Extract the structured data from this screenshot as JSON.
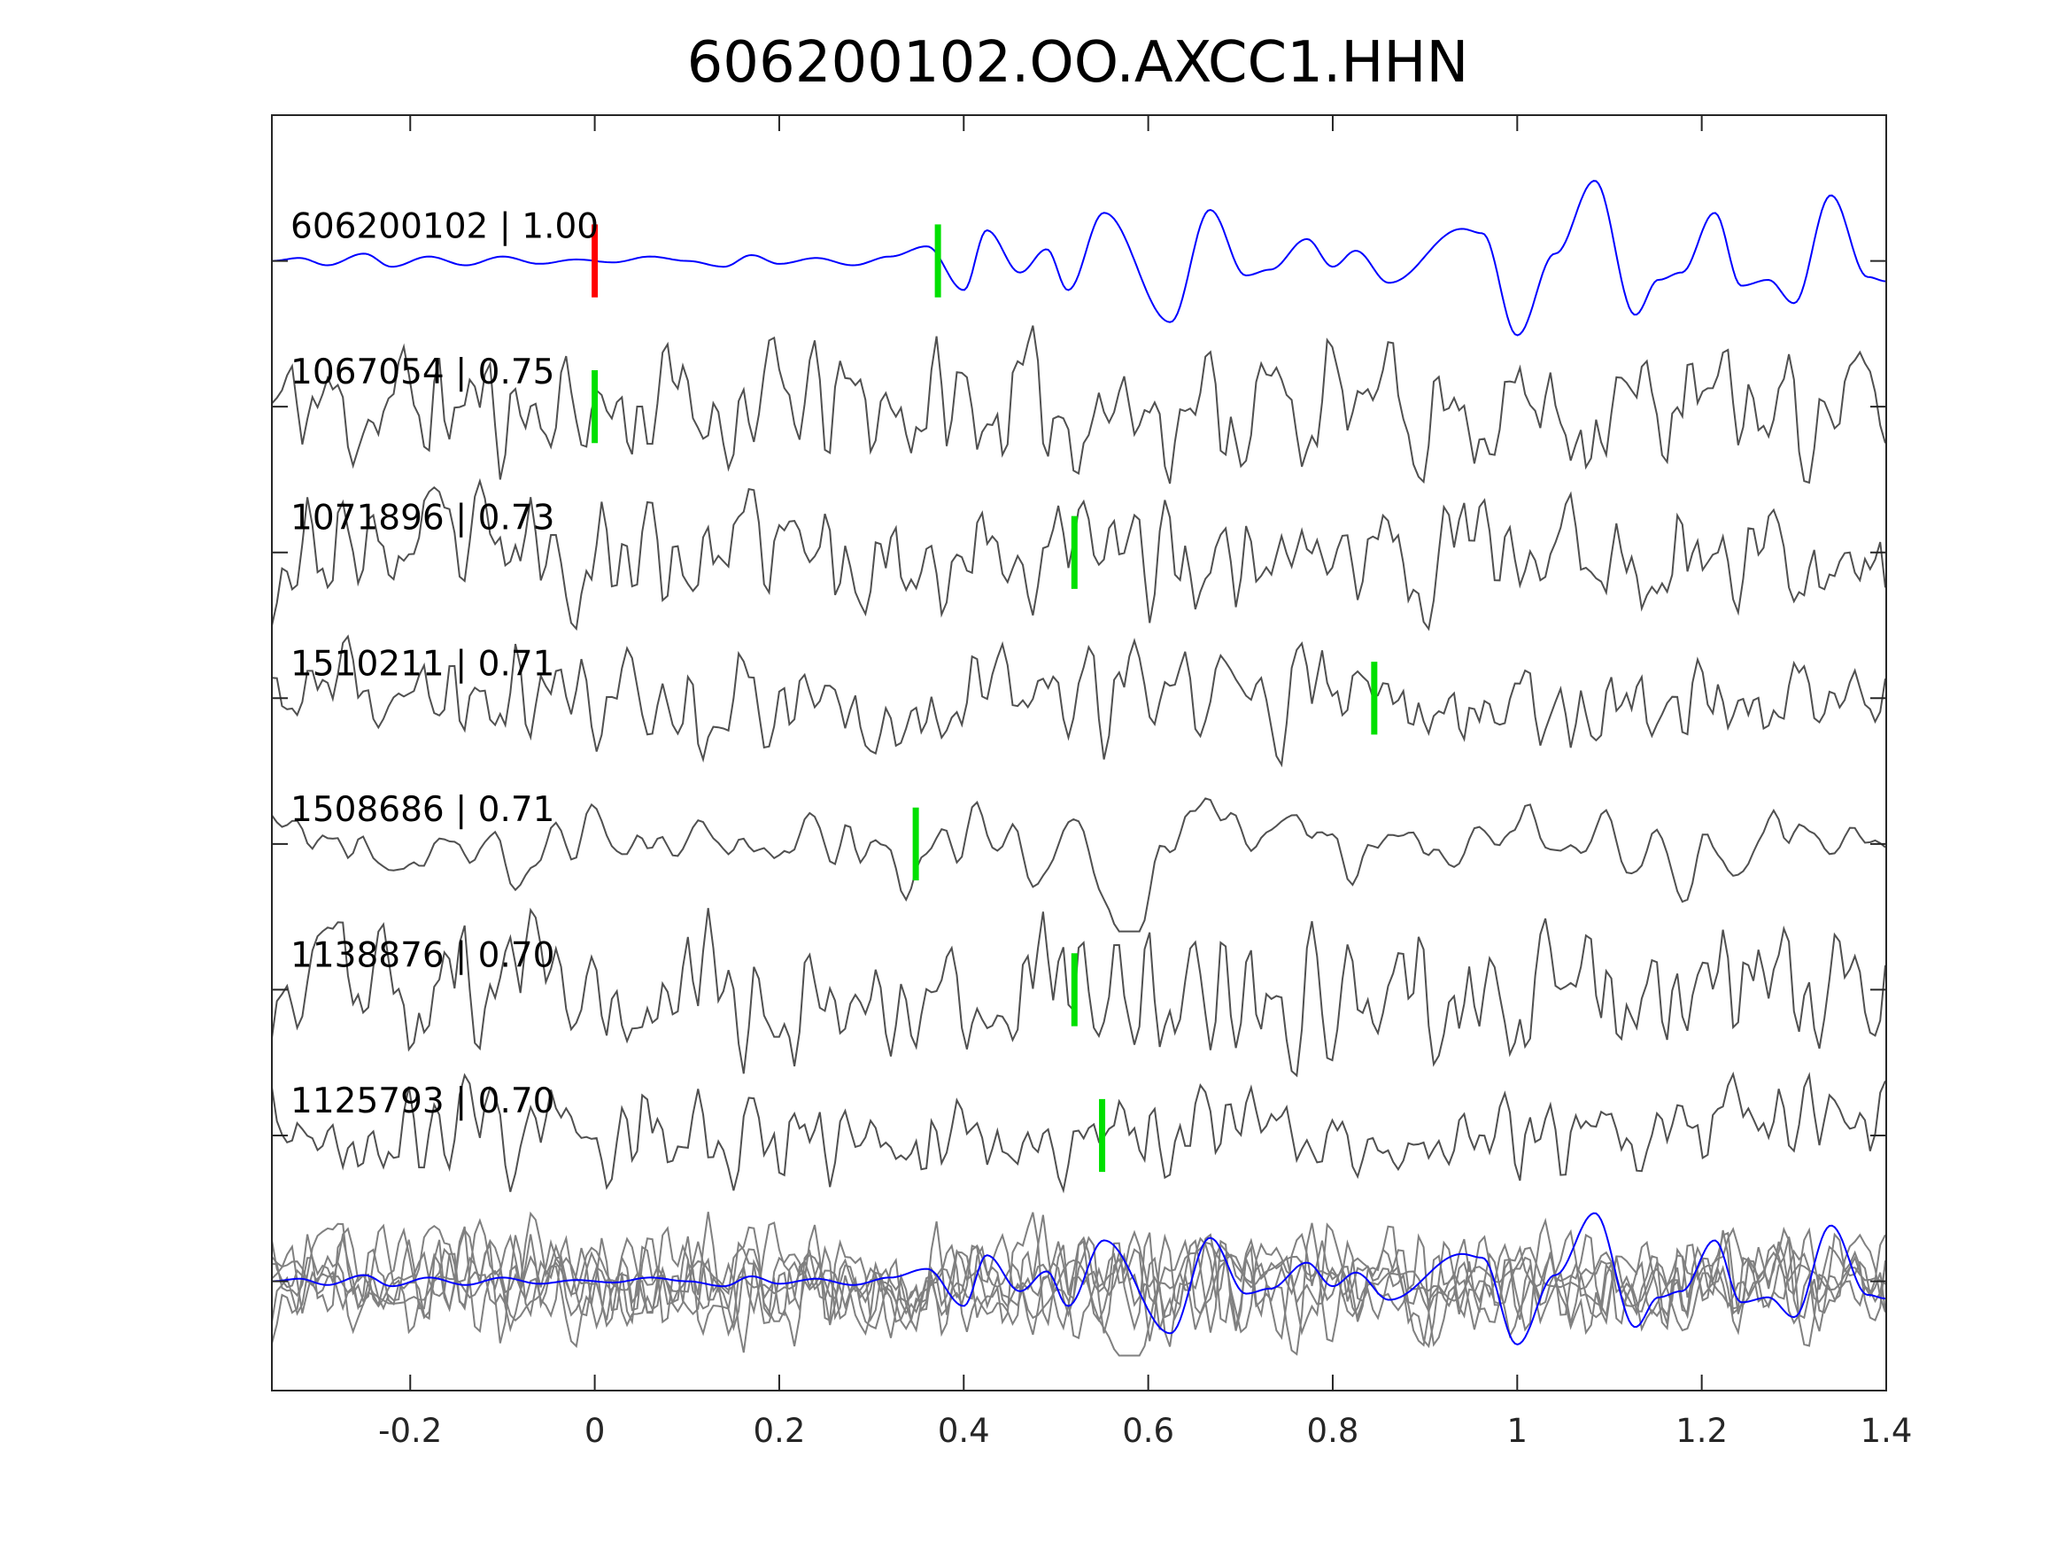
{
  "chart_data": {
    "type": "line",
    "title": "606200102.OO.AXCC1.HHN",
    "xlim": [
      -0.35,
      1.4
    ],
    "ylim": [
      -7.75,
      1.0
    ],
    "xticks": [
      -0.2,
      0,
      0.2,
      0.4,
      0.6,
      0.8,
      1,
      1.2,
      1.4
    ],
    "xtick_labels": [
      "-0.2",
      "0",
      "0.2",
      "0.4",
      "0.6",
      "0.8",
      "1",
      "1.2",
      "1.4"
    ],
    "xlabel": "",
    "ylabel": "",
    "grid": false,
    "colors": {
      "template": "#0000ff",
      "match": "#505050",
      "stack": "#808080",
      "origin_pick": "#ff0000",
      "phase_pick": "#00e000",
      "axis": "#262626"
    },
    "traces": [
      {
        "label": "606200102 | 1.00",
        "id": "606200102",
        "cc": "1.00",
        "color": "template",
        "origin_pick": 0.0,
        "phase_pick": 0.372,
        "keypoints": [
          [
            -0.35,
            0
          ],
          [
            -0.32,
            0.02
          ],
          [
            -0.29,
            -0.03
          ],
          [
            -0.25,
            0.05
          ],
          [
            -0.22,
            -0.04
          ],
          [
            -0.18,
            0.03
          ],
          [
            -0.14,
            -0.03
          ],
          [
            -0.1,
            0.03
          ],
          [
            -0.06,
            -0.02
          ],
          [
            -0.02,
            0.01
          ],
          [
            0.02,
            -0.01
          ],
          [
            0.06,
            0.03
          ],
          [
            0.1,
            0.0
          ],
          [
            0.14,
            -0.04
          ],
          [
            0.17,
            0.04
          ],
          [
            0.2,
            -0.02
          ],
          [
            0.24,
            0.02
          ],
          [
            0.28,
            -0.03
          ],
          [
            0.32,
            0.03
          ],
          [
            0.36,
            0.1
          ],
          [
            0.4,
            -0.2
          ],
          [
            0.425,
            0.21
          ],
          [
            0.461,
            -0.08
          ],
          [
            0.49,
            0.08
          ],
          [
            0.513,
            -0.2
          ],
          [
            0.552,
            0.33
          ],
          [
            0.624,
            -0.42
          ],
          [
            0.667,
            0.35
          ],
          [
            0.706,
            -0.1
          ],
          [
            0.732,
            -0.06
          ],
          [
            0.772,
            0.15
          ],
          [
            0.8,
            -0.04
          ],
          [
            0.825,
            0.07
          ],
          [
            0.861,
            -0.15
          ],
          [
            0.94,
            0.22
          ],
          [
            0.962,
            0.19
          ],
          [
            1.0,
            -0.51
          ],
          [
            1.041,
            0.05
          ],
          [
            1.084,
            0.55
          ],
          [
            1.128,
            -0.37
          ],
          [
            1.153,
            -0.13
          ],
          [
            1.178,
            -0.08
          ],
          [
            1.214,
            0.33
          ],
          [
            1.243,
            -0.17
          ],
          [
            1.272,
            -0.13
          ],
          [
            1.3,
            -0.29
          ],
          [
            1.34,
            0.45
          ],
          [
            1.38,
            -0.11
          ],
          [
            1.4,
            -0.14
          ]
        ]
      },
      {
        "label": "1067054 | 0.75",
        "id": "1067054",
        "cc": "0.75",
        "color": "match",
        "phase_pick": 0.0,
        "seed": 11,
        "amplitude": 0.42,
        "smooth": false
      },
      {
        "label": "1071896 | 0.73",
        "id": "1071896",
        "cc": "0.73",
        "color": "match",
        "phase_pick": 0.52,
        "seed": 23,
        "amplitude": 0.38,
        "smooth": false
      },
      {
        "label": "1510211 | 0.71",
        "id": "1510211",
        "cc": "0.71",
        "color": "match",
        "phase_pick": 0.845,
        "seed": 37,
        "amplitude": 0.32,
        "smooth": false
      },
      {
        "label": "1508686 | 0.71",
        "id": "1508686",
        "cc": "0.71",
        "color": "match",
        "phase_pick": 0.348,
        "seed": 41,
        "amplitude": 0.18,
        "smooth": true
      },
      {
        "label": "1138876 | 0.70",
        "id": "1138876",
        "cc": "0.70",
        "color": "match",
        "phase_pick": 0.52,
        "seed": 53,
        "amplitude": 0.42,
        "smooth": false
      },
      {
        "label": "1125793 | 0.70",
        "id": "1125793",
        "cc": "0.70",
        "color": "match",
        "phase_pick": 0.55,
        "seed": 67,
        "amplitude": 0.3,
        "smooth": false
      }
    ],
    "stack_baseline": -7,
    "sample_interval": 0.0055
  }
}
